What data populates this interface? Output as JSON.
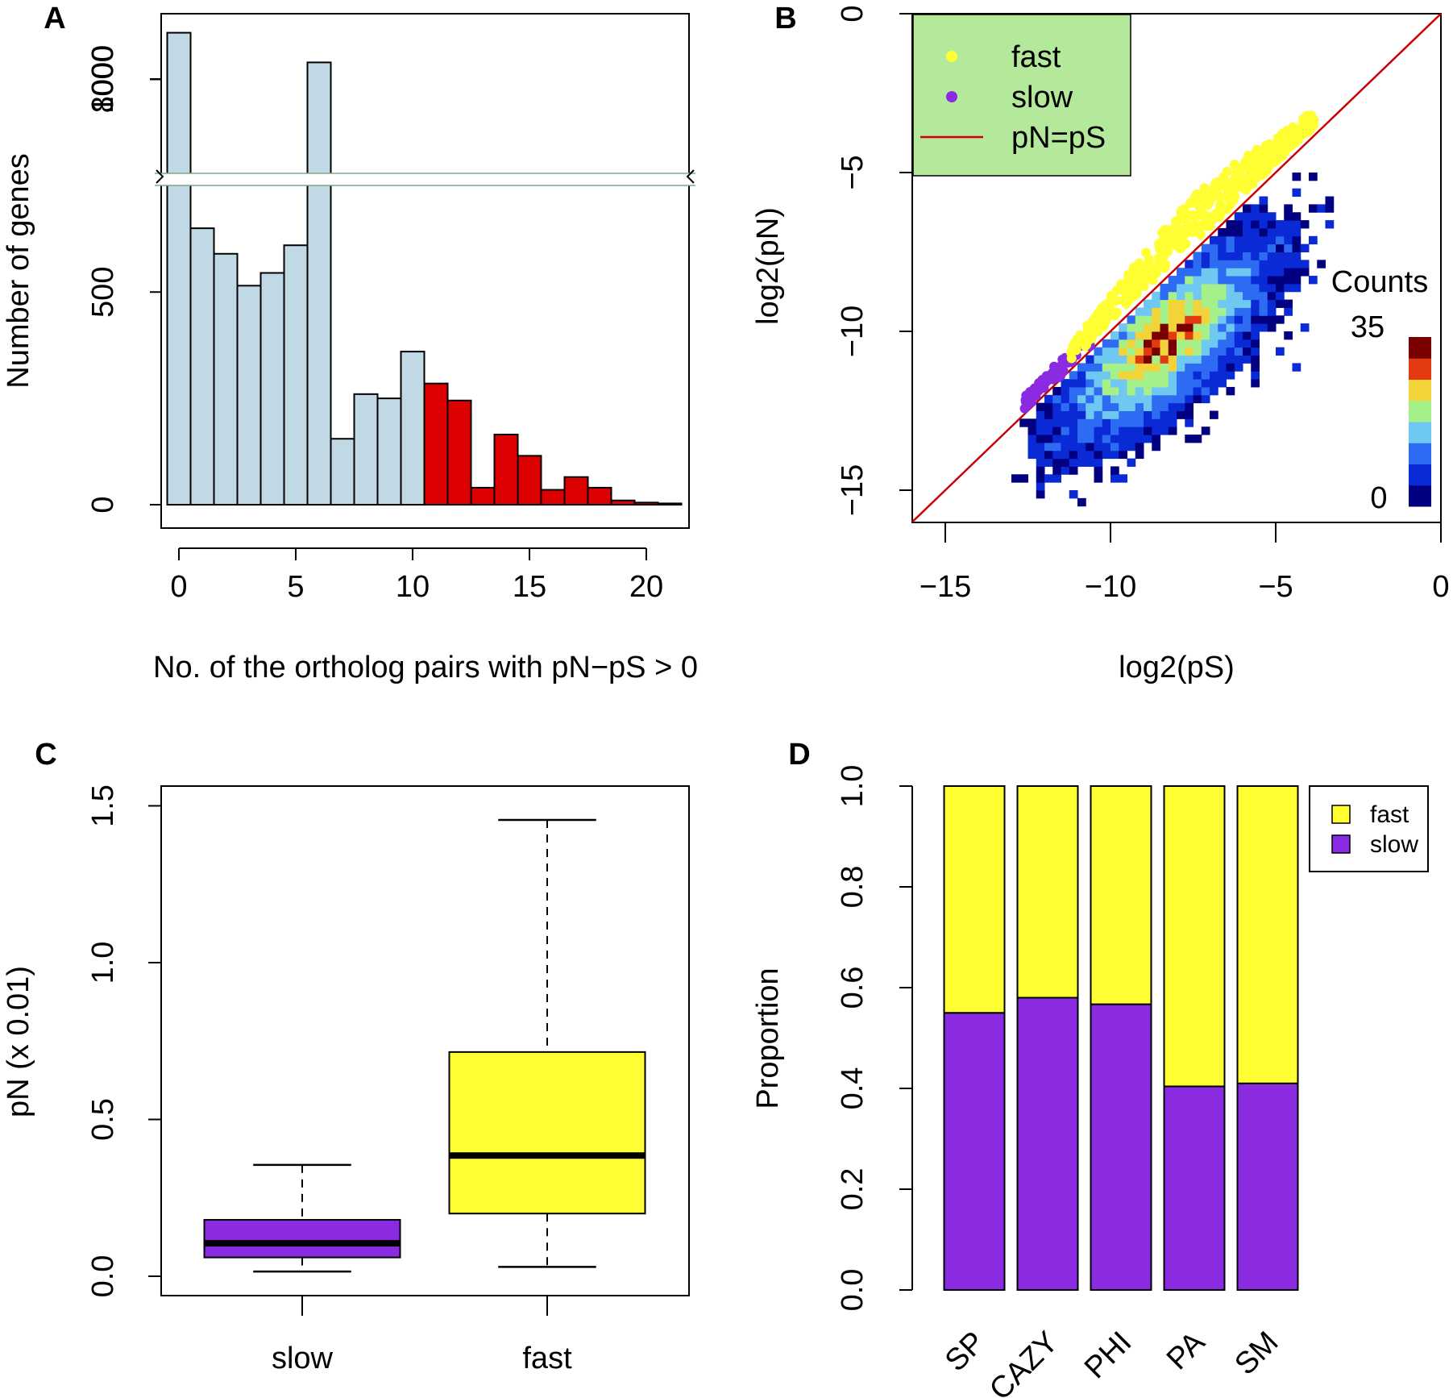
{
  "chart_data": [
    {
      "panel": "A",
      "type": "bar",
      "title": "",
      "xlabel": "No. of the ortholog pairs with pN−pS > 0",
      "ylabel": "Number of genes",
      "x": [
        0,
        1,
        2,
        3,
        4,
        5,
        6,
        7,
        8,
        9,
        10,
        11,
        12,
        13,
        14,
        15,
        16,
        17,
        18,
        19,
        20,
        21
      ],
      "values": [
        9000,
        650,
        590,
        515,
        545,
        610,
        1040,
        155,
        260,
        250,
        360,
        285,
        245,
        40,
        165,
        115,
        35,
        65,
        40,
        10,
        5,
        3
      ],
      "highlight_from_x": 11,
      "colors": {
        "normal": "#c0d9e5",
        "highlight": "#dd0000"
      },
      "xticks": [
        0,
        5,
        10,
        15,
        20
      ],
      "xtick_labels": [
        "0",
        "5",
        "10",
        "15",
        "20"
      ],
      "yticks_lower": [
        0,
        500,
        1000
      ],
      "ytick_labels_lower": [
        "0",
        "500",
        "1000"
      ],
      "yticks_upper": [
        8000
      ],
      "ytick_labels_upper": [
        "8000"
      ],
      "ylim_lower": [
        0,
        1350
      ],
      "ylim_upper": [
        7900,
        9300
      ],
      "axis_break": true
    },
    {
      "panel": "B",
      "type": "heatmap",
      "title": "",
      "xlabel": "log2(pS)",
      "ylabel": "log2(pN)",
      "xlim": [
        -16,
        0
      ],
      "ylim": [
        -16,
        0
      ],
      "xticks": [
        -15,
        -10,
        -5,
        0
      ],
      "xtick_labels": [
        "−15",
        "−10",
        "−5",
        "0"
      ],
      "yticks": [
        0,
        -5,
        -10,
        -15
      ],
      "ytick_labels": [
        "0",
        "−5",
        "−10",
        "−15"
      ],
      "density": {
        "center": [
          -8.3,
          -10.3
        ],
        "major_sd": 2.2,
        "minor_sd": 0.9,
        "angle_deg": 45,
        "max_count": 35
      },
      "colorbar": {
        "title": "Counts",
        "max_label": "35",
        "min_label": "0",
        "colors": [
          "#000080",
          "#0a2ad5",
          "#2d6cf2",
          "#6fc8f2",
          "#a6f08a",
          "#f2d33a",
          "#e33a12",
          "#7a0000"
        ]
      },
      "legend": {
        "position": "top-left",
        "background": "#b4e89b",
        "entries": [
          {
            "label": "fast",
            "kind": "point",
            "color": "#ffff33"
          },
          {
            "label": "slow",
            "kind": "point",
            "color": "#8a2be2"
          },
          {
            "label": "pN=pS",
            "kind": "line",
            "color": "#cc0000"
          }
        ]
      },
      "fast_band": {
        "x_range": [
          -11.2,
          -3.8
        ],
        "offset_range": [
          0.3,
          1.4
        ],
        "color": "#ffff33"
      },
      "slow_band": {
        "x_range": [
          -12.6,
          -10.6
        ],
        "offset_range": [
          0.1,
          0.6
        ],
        "color": "#8a2be2"
      },
      "reference_line": {
        "slope": 1,
        "intercept": 0,
        "color": "#cc0000"
      }
    },
    {
      "panel": "C",
      "type": "box",
      "title": "",
      "xlabel": "",
      "ylabel": "pN (x 0.01)",
      "ylim": [
        -0.06,
        1.56
      ],
      "yticks": [
        0.0,
        0.5,
        1.0,
        1.5
      ],
      "ytick_labels": [
        "0.0",
        "0.5",
        "1.0",
        "1.5"
      ],
      "categories": [
        "slow",
        "fast"
      ],
      "boxes": [
        {
          "name": "slow",
          "min": 0.015,
          "q1": 0.06,
          "median": 0.105,
          "q3": 0.18,
          "max": 0.355,
          "color": "#8a2be2"
        },
        {
          "name": "fast",
          "min": 0.03,
          "q1": 0.2,
          "median": 0.385,
          "q3": 0.715,
          "max": 1.455,
          "color": "#ffff33"
        }
      ]
    },
    {
      "panel": "D",
      "type": "bar",
      "stacked": true,
      "title": "",
      "xlabel": "",
      "ylabel": "Proportion",
      "ylim": [
        0,
        1
      ],
      "yticks": [
        0.0,
        0.2,
        0.4,
        0.6,
        0.8,
        1.0
      ],
      "ytick_labels": [
        "0.0",
        "0.2",
        "0.4",
        "0.6",
        "0.8",
        "1.0"
      ],
      "categories": [
        "SP",
        "CAZY",
        "PHI",
        "PA",
        "SM"
      ],
      "series": [
        {
          "name": "slow",
          "color": "#8a2be2",
          "values": [
            0.55,
            0.58,
            0.567,
            0.404,
            0.41
          ]
        },
        {
          "name": "fast",
          "color": "#ffff33",
          "values": [
            0.45,
            0.42,
            0.433,
            0.596,
            0.59
          ]
        }
      ],
      "legend": {
        "position": "top-right",
        "entries": [
          {
            "label": "fast",
            "color": "#ffff33"
          },
          {
            "label": "slow",
            "color": "#8a2be2"
          }
        ]
      }
    }
  ]
}
